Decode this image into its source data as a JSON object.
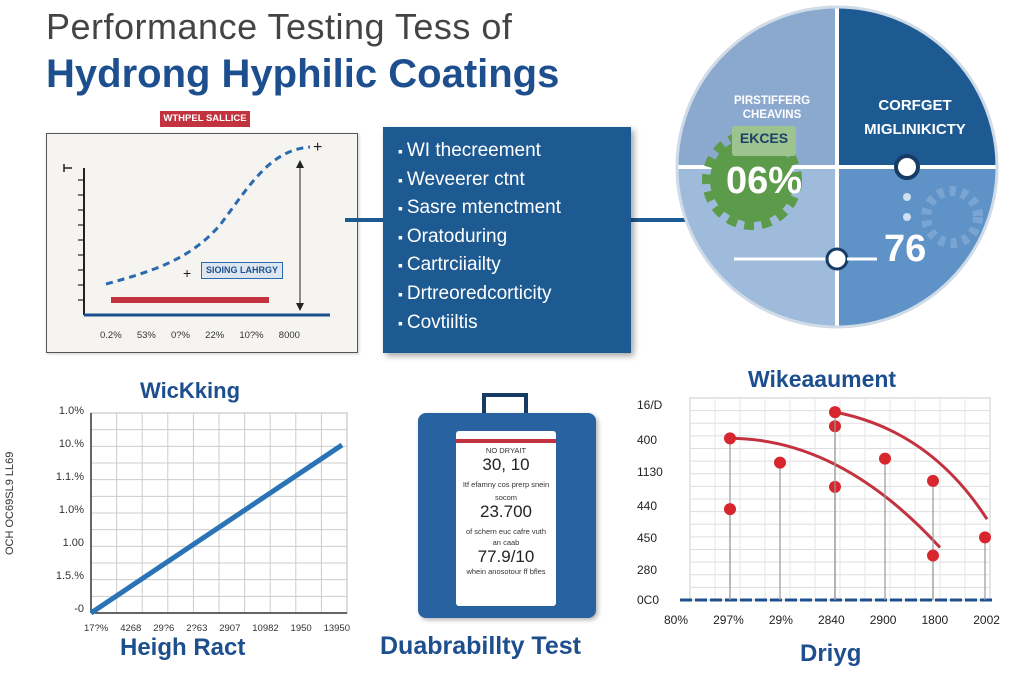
{
  "header": {
    "title_line1": "Performance Testing Tess of",
    "title_line2": "Hydrong Hyphilic Coatings"
  },
  "top_chart": {
    "label_red": "WTHPEL SALLICE",
    "label_box": "SIOING LAHRGY",
    "x_ticks": [
      "0.2%",
      "53%",
      "0?%",
      "22%",
      "10?%",
      "8000"
    ],
    "plus_marker": "+"
  },
  "list_box": {
    "items": [
      "WI thecreement",
      "Weveerer ctnt",
      "Sasre mtenctment",
      "Oratoduring",
      "Cartrciiailty",
      "Drtreoredcorticity",
      "Covtiiltis"
    ]
  },
  "circle": {
    "q1_line1": "PIRSTIFFERG",
    "q1_line2": "CHEAVINS",
    "q2_line1": "CORFGET",
    "q2_line2": "MIGLINIKICTY",
    "badge_label": "EKCES",
    "badge_value": "06%",
    "value_76": "76"
  },
  "wicking": {
    "title": "WicKking",
    "bottom_title": "Heigh Ract",
    "y_axis_label": "OCH OC69SL9 LL69",
    "y_ticks": [
      "1.0%",
      "10.%",
      "1.1.%",
      "1.0%",
      "1.00",
      "1.5.%",
      "-0"
    ],
    "x_ticks": [
      "17?%",
      "4268",
      "29?6",
      "2?63",
      "2907",
      "10982",
      "1950",
      "13950"
    ],
    "chart_data": {
      "type": "line",
      "title": "WicKking",
      "xlabel": "Heigh Ract",
      "ylabel": "OCH OC69SL9 LL69",
      "series": [
        {
          "name": "wicking",
          "points": [
            [
              0,
              0
            ],
            [
              1,
              1
            ]
          ]
        }
      ]
    }
  },
  "durability": {
    "title": "Duabrabillty Test",
    "line1": "NO DRYAIT",
    "value1": "30, 10",
    "line2": "Itf efamny cos prerp snein",
    "line3": "socom",
    "value2": "23.700",
    "line4": "of schern euc cafre vuth",
    "line5": "an  caab",
    "value3": "77.9/10",
    "line6": "whein anosotour ff bfles"
  },
  "wike": {
    "title": "Wikeaaument",
    "bottom_title": "Driyg",
    "y_ticks": [
      "16/D",
      "400",
      "1130",
      "440",
      "450",
      "280",
      "0C0"
    ],
    "x_ticks": [
      "80%",
      "297%",
      "29%",
      "2840",
      "2900",
      "1800",
      "2002"
    ],
    "chart_data": {
      "type": "scatter",
      "title": "Wikeaaument",
      "xlabel": "Driyg",
      "points": [
        [
          1,
          400
        ],
        [
          1,
          225
        ],
        [
          2,
          340
        ],
        [
          3,
          430
        ],
        [
          3,
          280
        ],
        [
          3,
          465
        ],
        [
          4,
          350
        ],
        [
          5,
          295
        ],
        [
          5,
          110
        ],
        [
          6,
          155
        ]
      ],
      "curves": 2
    }
  },
  "colors": {
    "navy": "#1d4f8f",
    "blue_box": "#1e5a92",
    "red": "#c2323f",
    "green": "#5b9b4a"
  }
}
